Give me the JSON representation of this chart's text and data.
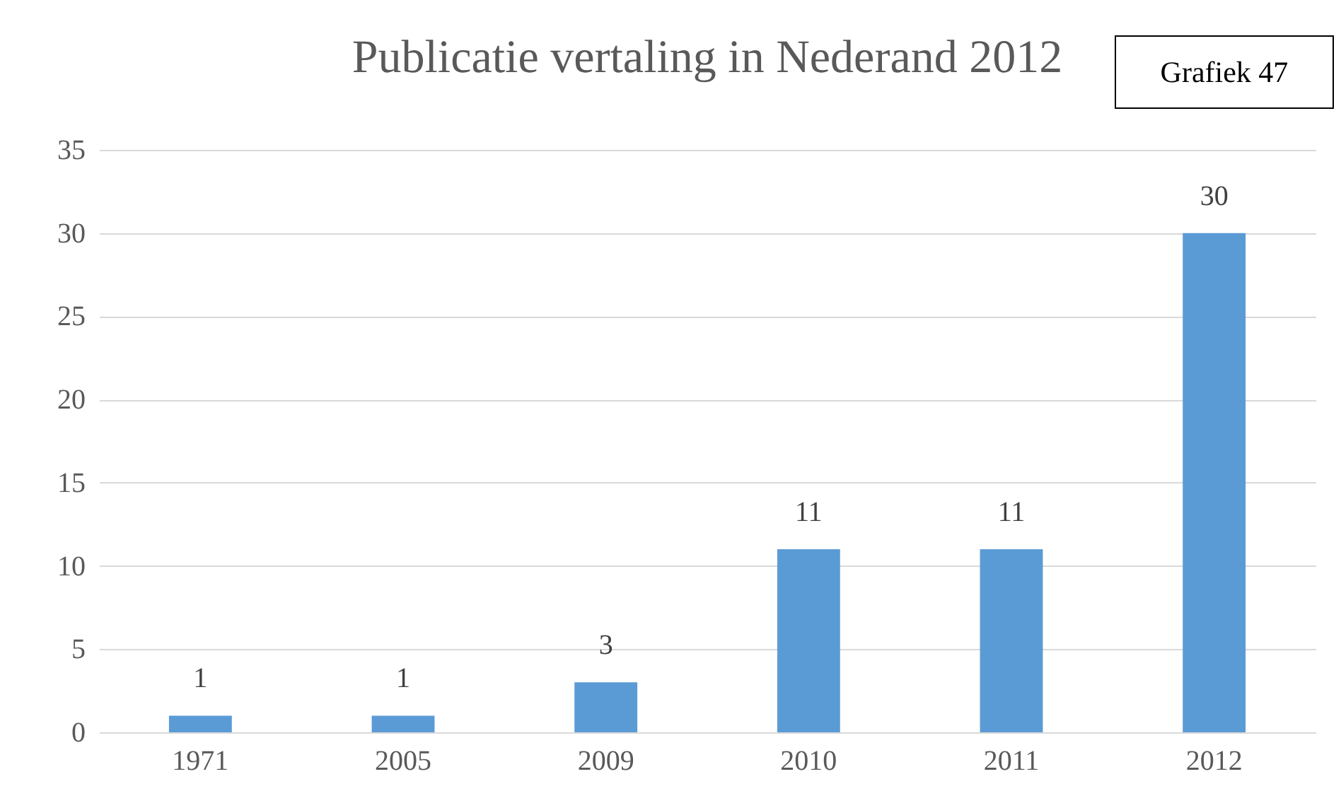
{
  "chart_data": {
    "type": "bar",
    "title": "Publicatie vertaling in Nederand 2012",
    "annotations": [
      "Grafiek 47"
    ],
    "categories": [
      "1971",
      "2005",
      "2009",
      "2010",
      "2011",
      "2012"
    ],
    "values": [
      1,
      1,
      3,
      11,
      11,
      30
    ],
    "color": "#5b9bd5",
    "ylim": [
      0,
      35
    ],
    "yticks": [
      0,
      5,
      10,
      15,
      20,
      25,
      30,
      35
    ],
    "grid": "y",
    "data_labels": true
  }
}
